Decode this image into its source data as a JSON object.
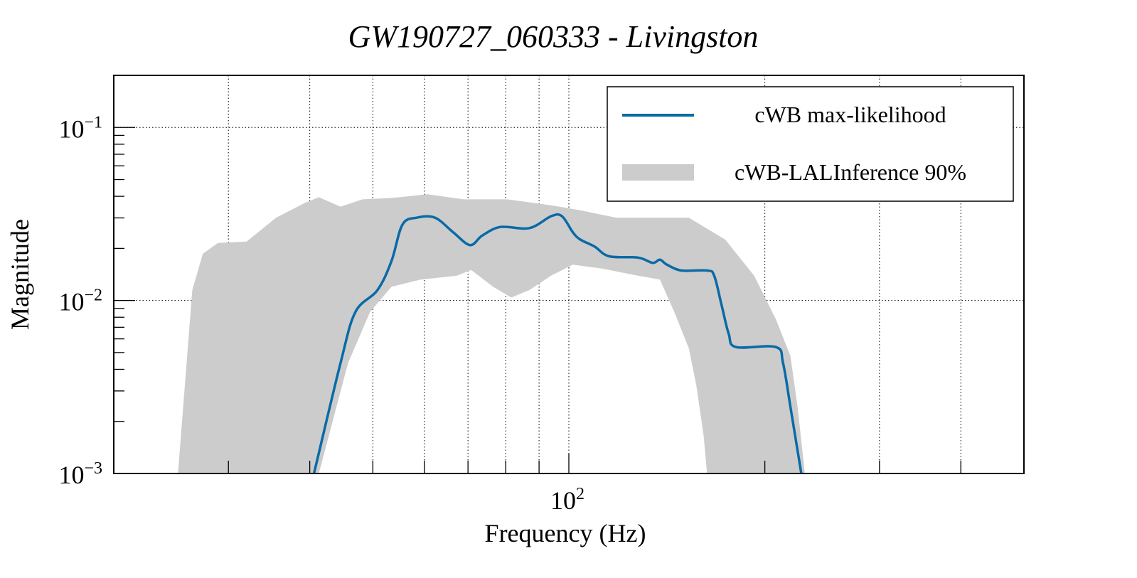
{
  "chart_data": {
    "type": "line",
    "title": "GW190727_060333 - Livingston",
    "xlabel": "Frequency (Hz)",
    "ylabel": "Magnitude",
    "xscale": "log",
    "yscale": "log",
    "xlim": [
      20,
      500
    ],
    "ylim": [
      0.001,
      0.2
    ],
    "grid": true,
    "x_gridlines": [
      30,
      40,
      50,
      60,
      70,
      80,
      90,
      100,
      200,
      300,
      400
    ],
    "x_ticklabels": [
      {
        "value": 100,
        "base": "10",
        "exp": "2"
      }
    ],
    "y_ticklabels": [
      {
        "value": 0.1,
        "base": "10",
        "exp": "−1"
      },
      {
        "value": 0.01,
        "base": "10",
        "exp": "−2"
      },
      {
        "value": 0.001,
        "base": "10",
        "exp": "−3"
      }
    ],
    "legend": {
      "placement": "top-right",
      "entries": [
        "cWB max-likelihood",
        "cWB-LALInference 90%"
      ]
    },
    "colors": {
      "line": "#0a6aa6",
      "band": "#cccccc"
    },
    "series": [
      {
        "name": "cWB max-likelihood",
        "x": [
          40.6,
          44.6,
          47.0,
          50.8,
          53.4,
          55.5,
          58.4,
          62.3,
          66.4,
          70.5,
          73.6,
          78.5,
          87.0,
          93.9,
          97.6,
          101.4,
          104.1,
          109.5,
          115.3,
          127.7,
          134.5,
          138.0,
          141.5,
          148.9,
          163.0,
          167.2,
          171.6,
          176.0,
          180.6,
          208.0,
          213.3,
          218.9,
          224.5,
          227.5
        ],
        "y": [
          0.001,
          0.00435,
          0.00857,
          0.01146,
          0.01687,
          0.0274,
          0.0301,
          0.0301,
          0.0248,
          0.0209,
          0.0237,
          0.0266,
          0.0262,
          0.0307,
          0.0307,
          0.0248,
          0.0225,
          0.0205,
          0.018,
          0.0177,
          0.0165,
          0.0172,
          0.0161,
          0.0149,
          0.0149,
          0.0139,
          0.00944,
          0.00641,
          0.00538,
          0.00538,
          0.00435,
          0.00244,
          0.00136,
          0.001
        ]
      },
      {
        "name": "cWB-LALInference 90%",
        "upper": {
          "x": [
            25.1,
            26.4,
            27.4,
            28.9,
            32.0,
            35.5,
            39.3,
            41.3,
            44.6,
            48.2,
            53.4,
            60.7,
            69.0,
            80.5,
            93.9,
            104.1,
            118.3,
            134.5,
            152.9,
            173.8,
            192.6,
            208.0,
            218.9,
            224.5,
            230.4
          ],
          "y": [
            0.001,
            0.01146,
            0.0186,
            0.0215,
            0.0219,
            0.0301,
            0.0366,
            0.0395,
            0.0348,
            0.0384,
            0.0391,
            0.0411,
            0.0384,
            0.0384,
            0.0355,
            0.0332,
            0.0301,
            0.0301,
            0.0301,
            0.0225,
            0.0139,
            0.00778,
            0.0048,
            0.00244,
            0.001
          ]
        },
        "lower": {
          "x": [
            25.3,
            41.3,
            45.8,
            49.5,
            53.4,
            59.2,
            67.3,
            70.8,
            76.5,
            81.6,
            87.0,
            93.9,
            101.4,
            112.4,
            127.7,
            138.0,
            145.2,
            152.9,
            156.9,
            161.1,
            163.0,
            230.4
          ],
          "y": [
            0.001,
            0.001,
            0.00435,
            0.00857,
            0.012,
            0.0132,
            0.0139,
            0.015,
            0.012,
            0.0104,
            0.0115,
            0.0139,
            0.0161,
            0.0153,
            0.0139,
            0.0132,
            0.00857,
            0.00528,
            0.00326,
            0.00165,
            0.001,
            0.001
          ]
        }
      }
    ]
  }
}
